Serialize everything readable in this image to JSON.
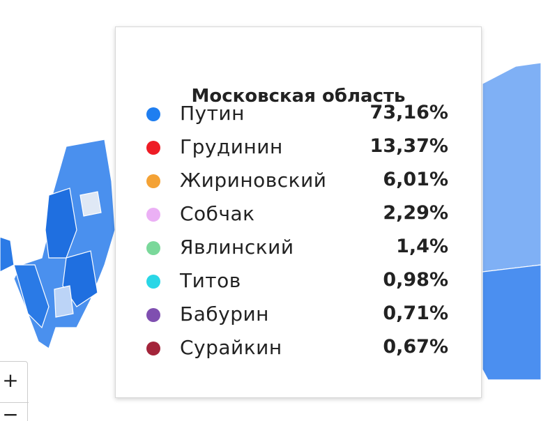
{
  "tooltip": {
    "title": "Московская область",
    "rows": [
      {
        "name": "Путин",
        "value": "73,16%",
        "color": "#1f7ef0"
      },
      {
        "name": "Грудинин",
        "value": "13,37%",
        "color": "#ee1c25"
      },
      {
        "name": "Жириновский",
        "value": "6,01%",
        "color": "#f4a235"
      },
      {
        "name": "Собчак",
        "value": "2,29%",
        "color": "#ebb0f5"
      },
      {
        "name": "Явлинский",
        "value": "1,4%",
        "color": "#7ad89a"
      },
      {
        "name": "Титов",
        "value": "0,98%",
        "color": "#29d6e6"
      },
      {
        "name": "Бабурин",
        "value": "0,71%",
        "color": "#7f4fb0"
      },
      {
        "name": "Сурайкин",
        "value": "0,67%",
        "color": "#a3243a"
      }
    ]
  },
  "zoom": {
    "in": "+",
    "out": "−"
  }
}
